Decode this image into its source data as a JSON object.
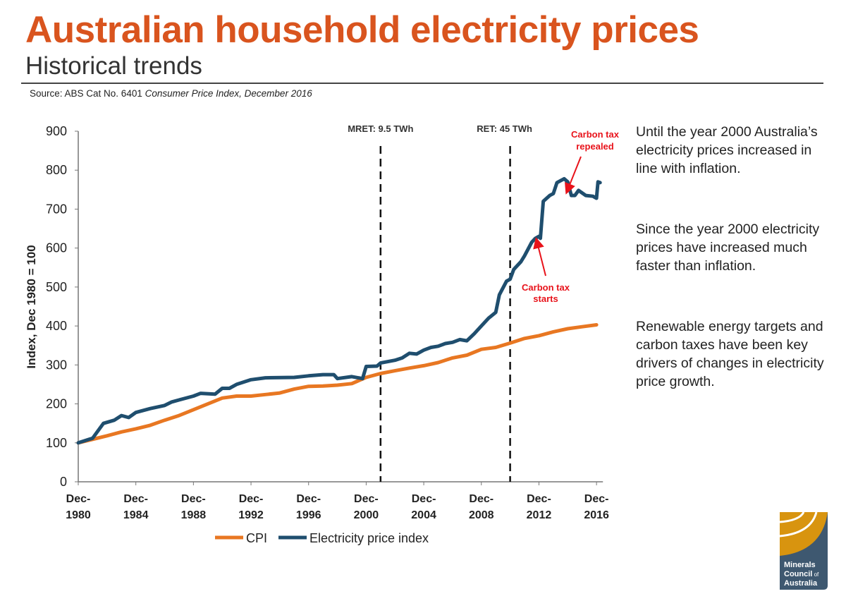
{
  "header": {
    "title": "Australian household electricity prices",
    "subtitle": "Historical trends",
    "source_prefix": "Source: ABS Cat No. 6401 ",
    "source_italic": "Consumer Price Index, December 2016"
  },
  "side_text": [
    "Until the year 2000 Australia’s electricity prices increased in line with inflation.",
    "Since the year 2000 electricity prices have increased much faster than inflation.",
    "Renewable energy targets and carbon taxes have been key drivers of changes in electricity price growth."
  ],
  "logo": {
    "text": [
      "Minerals",
      "Council of",
      "Australia"
    ],
    "colors": {
      "gold": "#D8940F",
      "slate": "#3E5870"
    }
  },
  "chart_data": {
    "type": "line",
    "title": "",
    "xlabel": "",
    "ylabel": "Index, Dec 1980 = 100",
    "ylim": [
      0,
      900
    ],
    "xlim": [
      1980,
      2016.25
    ],
    "yticks": [
      0,
      100,
      200,
      300,
      400,
      500,
      600,
      700,
      800,
      900
    ],
    "xticks": [
      {
        "year": 1980,
        "label": [
          "Dec-",
          "1980"
        ]
      },
      {
        "year": 1984,
        "label": [
          "Dec-",
          "1984"
        ]
      },
      {
        "year": 1988,
        "label": [
          "Dec-",
          "1988"
        ]
      },
      {
        "year": 1992,
        "label": [
          "Dec-",
          "1992"
        ]
      },
      {
        "year": 1996,
        "label": [
          "Dec-",
          "1996"
        ]
      },
      {
        "year": 2000,
        "label": [
          "Dec-",
          "2000"
        ]
      },
      {
        "year": 2004,
        "label": [
          "Dec-",
          "2004"
        ]
      },
      {
        "year": 2008,
        "label": [
          "Dec-",
          "2008"
        ]
      },
      {
        "year": 2012,
        "label": [
          "Dec-",
          "2012"
        ]
      },
      {
        "year": 2016,
        "label": [
          "Dec-",
          "2016"
        ]
      }
    ],
    "grid": false,
    "legend_position": "bottom",
    "series": [
      {
        "name": "CPI",
        "color": "#E87722",
        "points": [
          [
            1980,
            100
          ],
          [
            1982,
            118
          ],
          [
            1983,
            128
          ],
          [
            1984,
            136
          ],
          [
            1985,
            145
          ],
          [
            1986,
            158
          ],
          [
            1987,
            170
          ],
          [
            1988,
            185
          ],
          [
            1989,
            200
          ],
          [
            1990,
            215
          ],
          [
            1991,
            220
          ],
          [
            1992,
            220
          ],
          [
            1993,
            224
          ],
          [
            1994,
            228
          ],
          [
            1995,
            238
          ],
          [
            1996,
            245
          ],
          [
            1997,
            246
          ],
          [
            1998,
            248
          ],
          [
            1999,
            252
          ],
          [
            2000,
            268
          ],
          [
            2001,
            278
          ],
          [
            2002,
            285
          ],
          [
            2003,
            292
          ],
          [
            2004,
            298
          ],
          [
            2005,
            306
          ],
          [
            2006,
            318
          ],
          [
            2007,
            325
          ],
          [
            2008,
            340
          ],
          [
            2009,
            345
          ],
          [
            2010,
            356
          ],
          [
            2011,
            368
          ],
          [
            2012,
            375
          ],
          [
            2013,
            385
          ],
          [
            2014,
            393
          ],
          [
            2015,
            398
          ],
          [
            2016,
            403
          ]
        ]
      },
      {
        "name": "Electricity price index",
        "color": "#1F4E6E",
        "points": [
          [
            1980,
            100
          ],
          [
            1981,
            112
          ],
          [
            1981.75,
            150
          ],
          [
            1982.5,
            158
          ],
          [
            1983,
            170
          ],
          [
            1983.5,
            165
          ],
          [
            1984,
            178
          ],
          [
            1985,
            188
          ],
          [
            1986,
            196
          ],
          [
            1986.5,
            205
          ],
          [
            1987,
            210
          ],
          [
            1988,
            220
          ],
          [
            1988.5,
            227
          ],
          [
            1989.5,
            225
          ],
          [
            1990,
            240
          ],
          [
            1990.5,
            240
          ],
          [
            1991,
            250
          ],
          [
            1992,
            262
          ],
          [
            1993,
            267
          ],
          [
            1995,
            268
          ],
          [
            1996,
            272
          ],
          [
            1997,
            275
          ],
          [
            1997.75,
            275
          ],
          [
            1998,
            265
          ],
          [
            1999,
            270
          ],
          [
            1999.75,
            265
          ],
          [
            2000,
            296
          ],
          [
            2000.75,
            297
          ],
          [
            2001,
            305
          ],
          [
            2002,
            312
          ],
          [
            2002.5,
            318
          ],
          [
            2003,
            330
          ],
          [
            2003.5,
            328
          ],
          [
            2004,
            338
          ],
          [
            2004.5,
            345
          ],
          [
            2005,
            348
          ],
          [
            2005.5,
            355
          ],
          [
            2006,
            358
          ],
          [
            2006.5,
            365
          ],
          [
            2007,
            362
          ],
          [
            2007.5,
            380
          ],
          [
            2008,
            400
          ],
          [
            2008.5,
            420
          ],
          [
            2009,
            435
          ],
          [
            2009.25,
            480
          ],
          [
            2009.75,
            515
          ],
          [
            2010,
            520
          ],
          [
            2010.25,
            545
          ],
          [
            2010.75,
            565
          ],
          [
            2011,
            580
          ],
          [
            2011.5,
            615
          ],
          [
            2011.75,
            625
          ],
          [
            2012,
            630
          ],
          [
            2012.1,
            625
          ],
          [
            2012.3,
            720
          ],
          [
            2012.75,
            735
          ],
          [
            2013,
            740
          ],
          [
            2013.25,
            768
          ],
          [
            2013.75,
            778
          ],
          [
            2014,
            770
          ],
          [
            2014.25,
            735
          ],
          [
            2014.5,
            735
          ],
          [
            2014.75,
            748
          ],
          [
            2015.25,
            735
          ],
          [
            2015.75,
            733
          ],
          [
            2016,
            728
          ],
          [
            2016.1,
            770
          ],
          [
            2016.25,
            768
          ]
        ]
      }
    ],
    "annotations": [
      {
        "type": "vline",
        "year": 2001,
        "label": "MRET: 9.5 TWh"
      },
      {
        "type": "vline",
        "year": 2010,
        "label": "RET: 45 TWh"
      },
      {
        "type": "arrow",
        "label": [
          "Carbon tax",
          "starts"
        ],
        "color": "#E8121A"
      },
      {
        "type": "arrow",
        "label": [
          "Carbon tax",
          "repealed"
        ],
        "color": "#E8121A"
      }
    ]
  }
}
